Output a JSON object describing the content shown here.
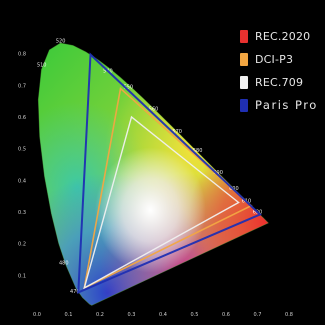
{
  "chart_data": {
    "type": "scatter",
    "title": "",
    "xlabel": "",
    "ylabel": "",
    "xlim": [
      0.0,
      0.8
    ],
    "ylim": [
      0.0,
      0.9
    ],
    "x_ticks": [
      "0.0",
      "0.1",
      "0.2",
      "0.3",
      "0.4",
      "0.5",
      "0.6",
      "0.7",
      "0.8"
    ],
    "y_ticks": [
      "0.1",
      "0.2",
      "0.3",
      "0.4",
      "0.5",
      "0.6",
      "0.7",
      "0.8"
    ],
    "spectral_locus_labels": [
      {
        "text": "520",
        "x": 0.075,
        "y": 0.835
      },
      {
        "text": "510",
        "x": 0.015,
        "y": 0.76
      },
      {
        "text": "540",
        "x": 0.225,
        "y": 0.74
      },
      {
        "text": "550",
        "x": 0.29,
        "y": 0.69
      },
      {
        "text": "560",
        "x": 0.37,
        "y": 0.62
      },
      {
        "text": "570",
        "x": 0.445,
        "y": 0.55
      },
      {
        "text": "580",
        "x": 0.51,
        "y": 0.49
      },
      {
        "text": "590",
        "x": 0.575,
        "y": 0.42
      },
      {
        "text": "600",
        "x": 0.625,
        "y": 0.37
      },
      {
        "text": "610",
        "x": 0.665,
        "y": 0.33
      },
      {
        "text": "620",
        "x": 0.7,
        "y": 0.295
      },
      {
        "text": "480",
        "x": 0.085,
        "y": 0.135
      },
      {
        "text": "470",
        "x": 0.12,
        "y": 0.045
      }
    ],
    "series": [
      {
        "name": "REC.2020",
        "color": "#e8312f",
        "points": [
          [
            0.708,
            0.292
          ],
          [
            0.17,
            0.797
          ],
          [
            0.131,
            0.046
          ]
        ]
      },
      {
        "name": "DCI-P3",
        "color": "#f2a642",
        "points": [
          [
            0.68,
            0.32
          ],
          [
            0.265,
            0.69
          ],
          [
            0.15,
            0.06
          ]
        ]
      },
      {
        "name": "REC.709",
        "color": "#f0f0f0",
        "points": [
          [
            0.64,
            0.33
          ],
          [
            0.3,
            0.6
          ],
          [
            0.15,
            0.06
          ]
        ]
      },
      {
        "name": "Paris Pro",
        "color": "#1f2fb3",
        "points": [
          [
            0.708,
            0.292
          ],
          [
            0.17,
            0.797
          ],
          [
            0.131,
            0.046
          ]
        ]
      }
    ],
    "legend": {
      "placement": "top-right"
    }
  },
  "colors": {
    "background": "#000000",
    "tick_text": "#cfcfcf"
  }
}
